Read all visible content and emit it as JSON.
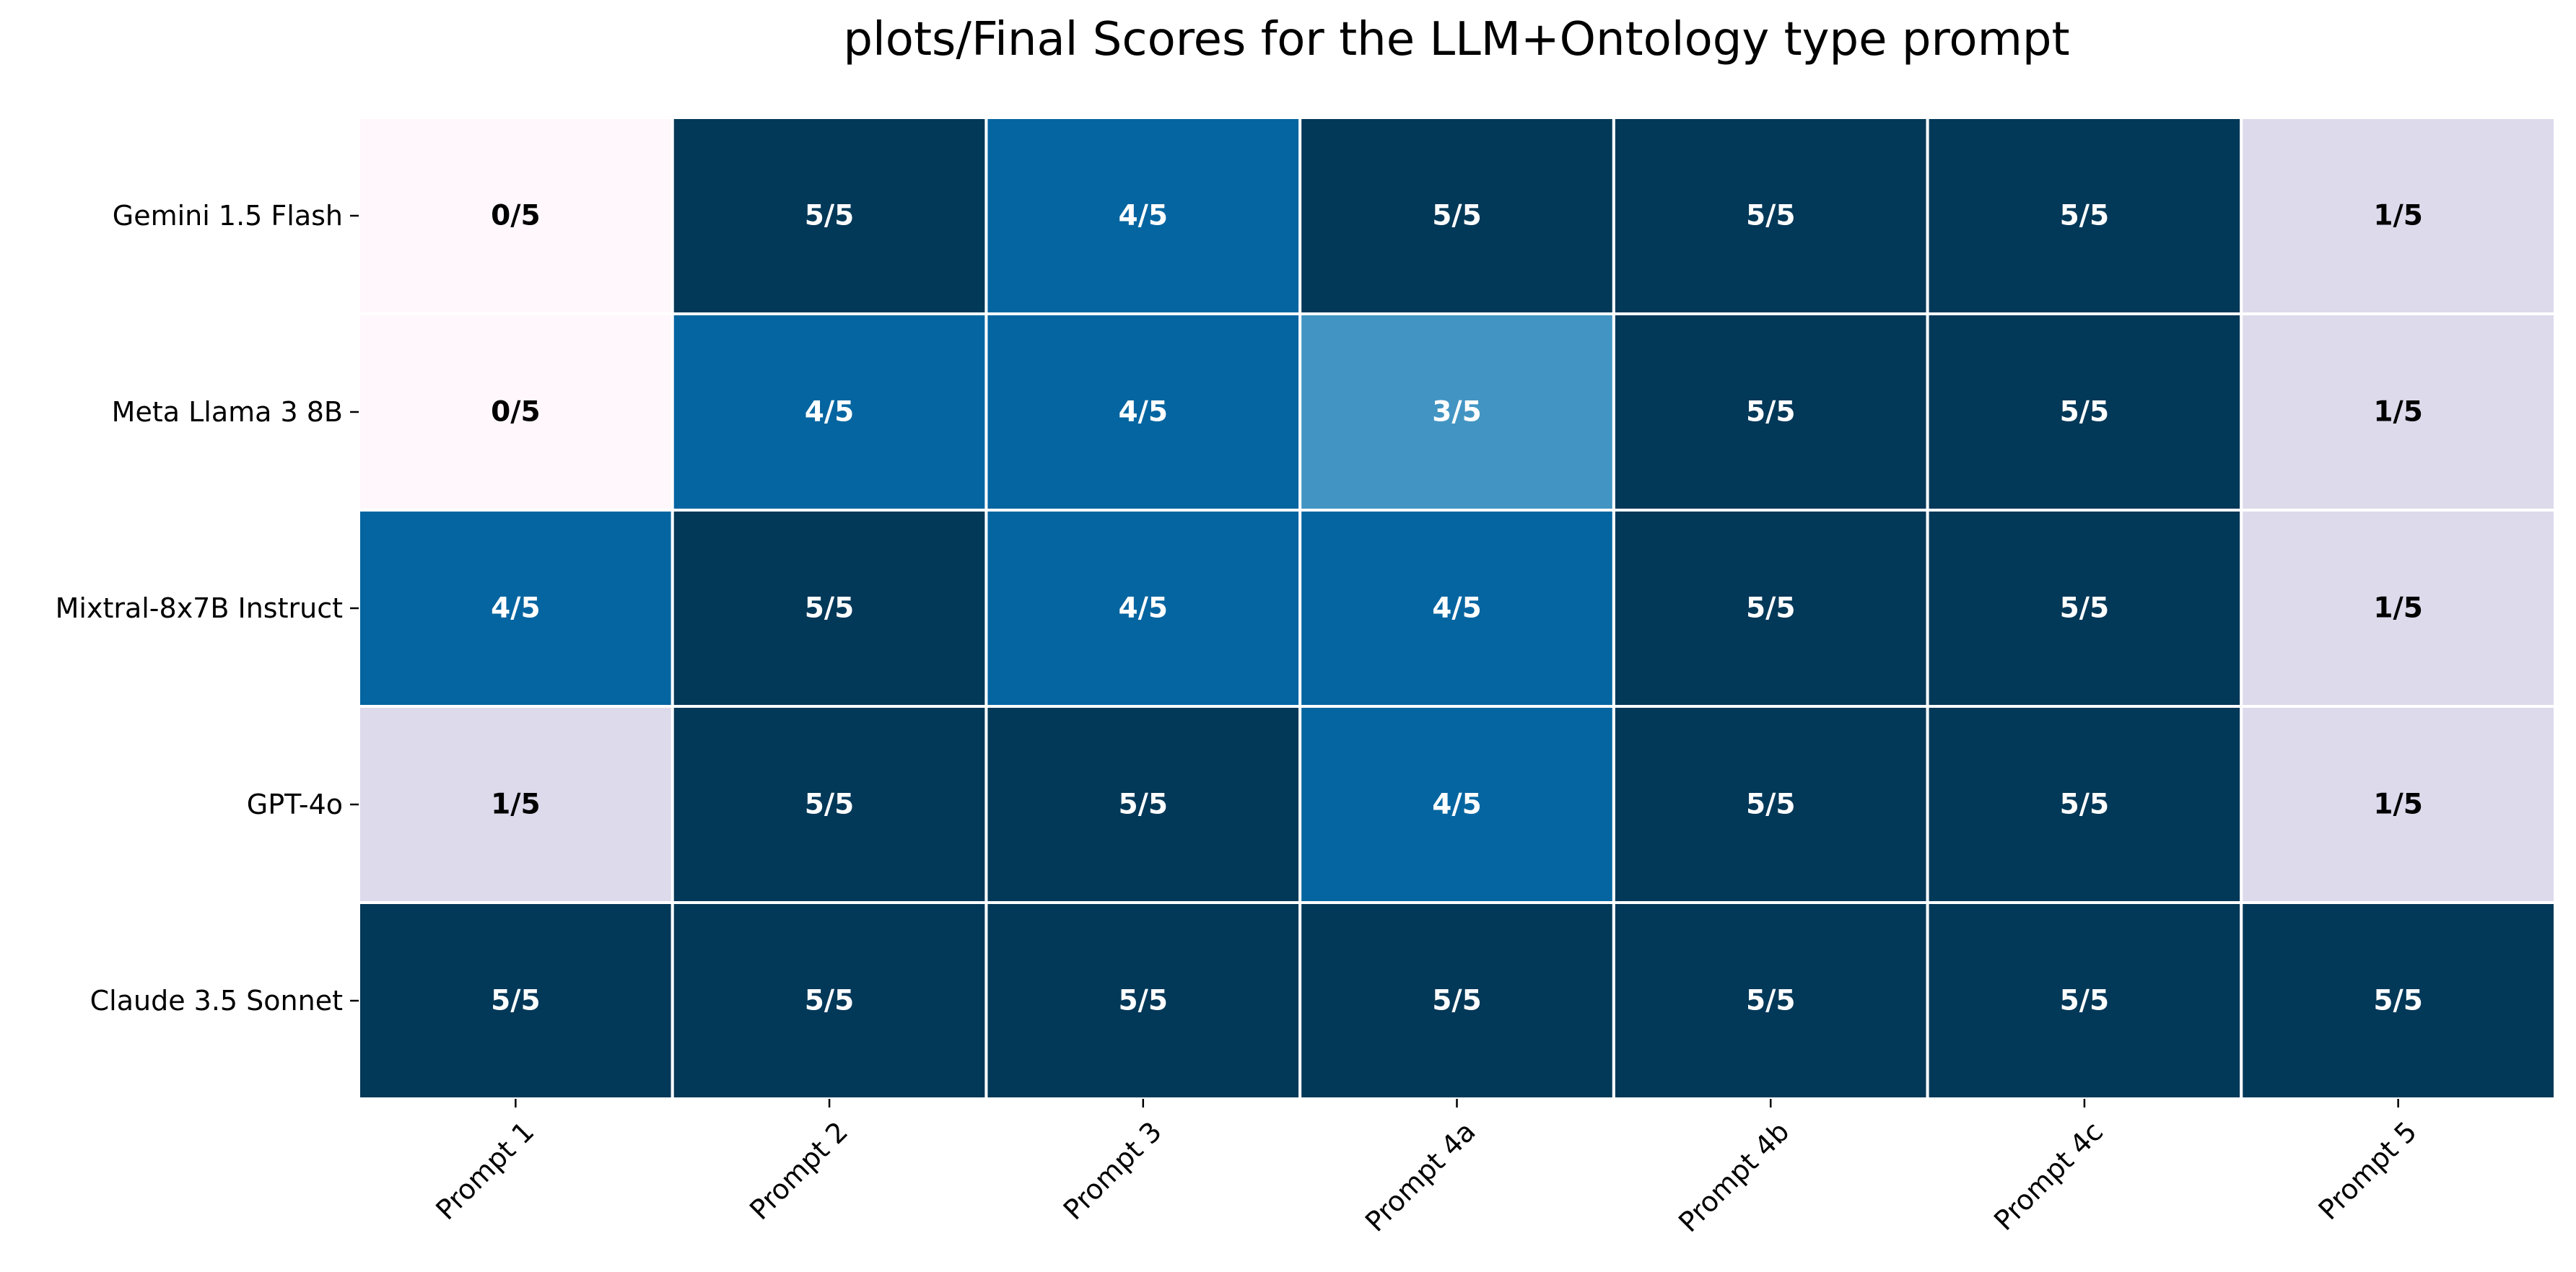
{
  "chart_data": {
    "type": "heatmap",
    "title": "plots/Final Scores for the LLM+Ontology type prompt",
    "xlabel": "",
    "ylabel": "",
    "rows": [
      "Gemini 1.5 Flash",
      "Meta Llama 3 8B",
      "Mixtral-8x7B Instruct",
      "GPT-4o",
      "Claude 3.5 Sonnet"
    ],
    "columns": [
      "Prompt 1",
      "Prompt 2",
      "Prompt 3",
      "Prompt 4a",
      "Prompt 4b",
      "Prompt 4c",
      "Prompt 5"
    ],
    "values": [
      [
        0,
        5,
        4,
        5,
        5,
        5,
        1
      ],
      [
        0,
        4,
        4,
        3,
        5,
        5,
        1
      ],
      [
        4,
        5,
        4,
        4,
        5,
        5,
        1
      ],
      [
        1,
        5,
        5,
        4,
        5,
        5,
        1
      ],
      [
        5,
        5,
        5,
        5,
        5,
        5,
        5
      ]
    ],
    "max_score": 5,
    "annotations": [
      [
        "0/5",
        "5/5",
        "4/5",
        "5/5",
        "5/5",
        "5/5",
        "1/5"
      ],
      [
        "0/5",
        "4/5",
        "4/5",
        "3/5",
        "5/5",
        "5/5",
        "1/5"
      ],
      [
        "4/5",
        "5/5",
        "4/5",
        "4/5",
        "5/5",
        "5/5",
        "1/5"
      ],
      [
        "1/5",
        "5/5",
        "5/5",
        "4/5",
        "5/5",
        "5/5",
        "1/5"
      ],
      [
        "5/5",
        "5/5",
        "5/5",
        "5/5",
        "5/5",
        "5/5",
        "5/5"
      ]
    ],
    "colormap": {
      "0": "#fff7fb",
      "1": "#dcdaeb",
      "2": "#a6bddb",
      "3": "#4295c3",
      "4": "#0565a1",
      "5": "#023858"
    },
    "annotation_colors": {
      "light": "#000000",
      "dark": "#ffffff"
    },
    "grid": true,
    "legend": "none"
  }
}
